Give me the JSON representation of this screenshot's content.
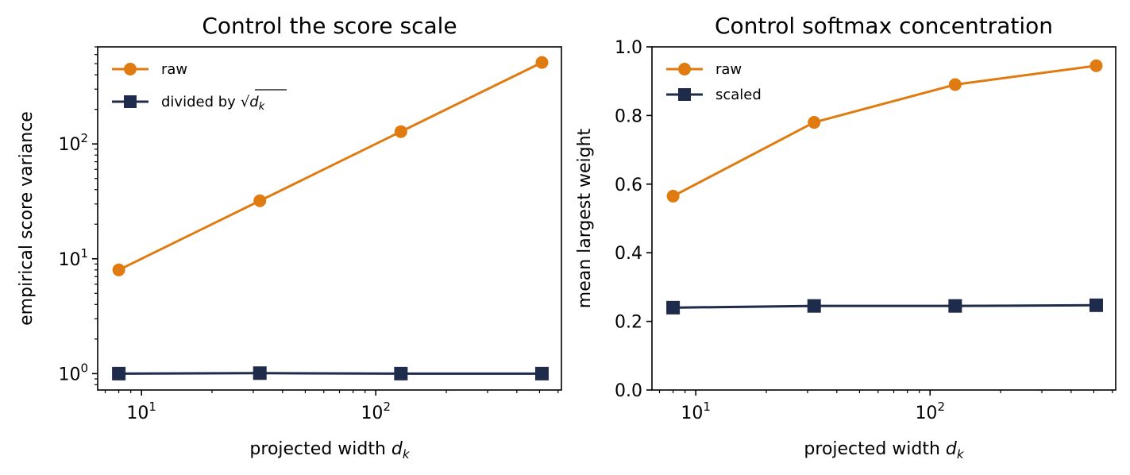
{
  "chart_data": [
    {
      "type": "line",
      "title": "Control the score scale",
      "xlabel": {
        "text": "projected width ",
        "sym": "d",
        "sub": "k"
      },
      "ylabel": "empirical score variance",
      "xscale": "log",
      "yscale": "log",
      "xlim": [
        6.5,
        620
      ],
      "ylim": [
        0.72,
        700
      ],
      "xticks": [
        {
          "value": 10,
          "base": "10",
          "exp": "1"
        },
        {
          "value": 100,
          "base": "10",
          "exp": "2"
        }
      ],
      "yticks": [
        {
          "value": 1,
          "base": "10",
          "exp": "0"
        },
        {
          "value": 10,
          "base": "10",
          "exp": "1"
        },
        {
          "value": 100,
          "base": "10",
          "exp": "2"
        }
      ],
      "x": [
        8,
        32,
        128,
        512
      ],
      "series": [
        {
          "name": "raw",
          "values": [
            8,
            32,
            128,
            512
          ],
          "color": "#e07b12",
          "marker": "circle"
        },
        {
          "name": "divided by",
          "name_math": {
            "sym": "d",
            "sub": "k"
          },
          "values": [
            1.0,
            1.01,
            1.0,
            1.0
          ],
          "color": "#1f2b4b",
          "marker": "square"
        }
      ],
      "legend": "top-left",
      "grid": false
    },
    {
      "type": "line",
      "title": "Control softmax concentration",
      "xlabel": {
        "text": "projected width ",
        "sym": "d",
        "sub": "k"
      },
      "ylabel": "mean largest weight",
      "xscale": "log",
      "yscale": "linear",
      "xlim": [
        6.5,
        620
      ],
      "ylim": [
        0.0,
        1.0
      ],
      "xticks": [
        {
          "value": 10,
          "base": "10",
          "exp": "1"
        },
        {
          "value": 100,
          "base": "10",
          "exp": "2"
        }
      ],
      "yticks": [
        {
          "value": 0.0,
          "label": "0.0"
        },
        {
          "value": 0.2,
          "label": "0.2"
        },
        {
          "value": 0.4,
          "label": "0.4"
        },
        {
          "value": 0.6,
          "label": "0.6"
        },
        {
          "value": 0.8,
          "label": "0.8"
        },
        {
          "value": 1.0,
          "label": "1.0"
        }
      ],
      "x": [
        8,
        32,
        128,
        512
      ],
      "series": [
        {
          "name": "raw",
          "values": [
            0.565,
            0.78,
            0.89,
            0.945
          ],
          "color": "#e07b12",
          "marker": "circle"
        },
        {
          "name": "scaled",
          "values": [
            0.24,
            0.245,
            0.245,
            0.247
          ],
          "color": "#1f2b4b",
          "marker": "square"
        }
      ],
      "legend": "top-left",
      "grid": false
    }
  ]
}
